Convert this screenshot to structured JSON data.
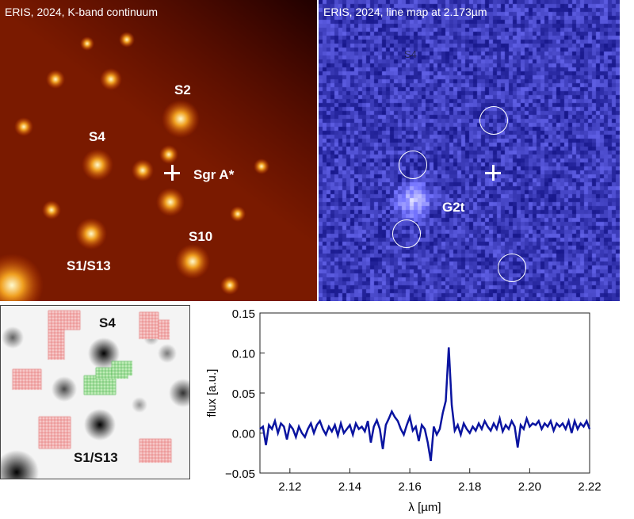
{
  "panel_continuum": {
    "title": "ERIS, 2024, K-band continuum",
    "labels": {
      "s2": "S2",
      "s4": "S4",
      "sgra": "Sgr A*",
      "s10": "S10",
      "s1s13": "S1/S13"
    },
    "colormap": "#7a1500"
  },
  "panel_linemap": {
    "title": "ERIS, 2024, line map at 2.173µm",
    "labels": {
      "s4": "S4",
      "g2t": "G2t"
    },
    "colormap": "#1c1ca8"
  },
  "panel_mask": {
    "labels": {
      "s4": "S4",
      "s1s13": "S1/S13"
    },
    "mask_colors": {
      "background": "#e05050",
      "source": "#40c040"
    }
  },
  "chart_data": {
    "type": "line",
    "xlabel": "λ [µm]",
    "ylabel": "flux [a.u.]",
    "xlim": [
      2.11,
      2.22
    ],
    "ylim": [
      -0.05,
      0.15
    ],
    "xticks": [
      "2.12",
      "2.14",
      "2.16",
      "2.18",
      "2.20",
      "2.22"
    ],
    "yticks": [
      "0.15",
      "0.10",
      "0.05",
      "0.00",
      "−0.05"
    ],
    "grid": false,
    "line_color": "#0a14a0",
    "x": [
      2.11,
      2.111,
      2.112,
      2.113,
      2.114,
      2.115,
      2.116,
      2.117,
      2.118,
      2.119,
      2.12,
      2.121,
      2.122,
      2.123,
      2.124,
      2.125,
      2.126,
      2.127,
      2.128,
      2.129,
      2.13,
      2.131,
      2.132,
      2.133,
      2.134,
      2.135,
      2.136,
      2.137,
      2.138,
      2.139,
      2.14,
      2.141,
      2.142,
      2.143,
      2.144,
      2.145,
      2.146,
      2.147,
      2.148,
      2.149,
      2.15,
      2.151,
      2.152,
      2.153,
      2.154,
      2.155,
      2.156,
      2.157,
      2.158,
      2.159,
      2.16,
      2.161,
      2.162,
      2.163,
      2.164,
      2.165,
      2.166,
      2.167,
      2.168,
      2.169,
      2.17,
      2.171,
      2.172,
      2.173,
      2.174,
      2.175,
      2.176,
      2.177,
      2.178,
      2.179,
      2.18,
      2.181,
      2.182,
      2.183,
      2.184,
      2.185,
      2.186,
      2.187,
      2.188,
      2.189,
      2.19,
      2.191,
      2.192,
      2.193,
      2.194,
      2.195,
      2.196,
      2.197,
      2.198,
      2.199,
      2.2,
      2.201,
      2.202,
      2.203,
      2.204,
      2.205,
      2.206,
      2.207,
      2.208,
      2.209,
      2.21,
      2.211,
      2.212,
      2.213,
      2.214,
      2.215,
      2.216,
      2.217,
      2.218,
      2.219,
      2.22
    ],
    "y": [
      0.005,
      0.008,
      -0.015,
      0.01,
      0.005,
      0.015,
      0.0,
      0.012,
      0.008,
      -0.008,
      0.01,
      0.005,
      -0.005,
      0.008,
      0.0,
      -0.005,
      0.005,
      0.012,
      0.0,
      0.01,
      0.015,
      0.005,
      -0.002,
      0.008,
      0.002,
      0.01,
      -0.003,
      0.012,
      0.0,
      0.005,
      0.01,
      -0.002,
      0.012,
      0.005,
      0.008,
      0.002,
      0.015,
      -0.012,
      0.008,
      0.016,
      0.005,
      -0.02,
      0.01,
      0.018,
      0.027,
      0.02,
      0.015,
      0.005,
      -0.002,
      0.01,
      0.02,
      0.003,
      0.008,
      -0.01,
      0.01,
      0.005,
      -0.012,
      -0.035,
      0.008,
      -0.002,
      0.005,
      0.025,
      0.04,
      0.107,
      0.035,
      0.003,
      0.01,
      -0.002,
      0.012,
      0.005,
      0.0,
      0.008,
      0.003,
      0.012,
      0.005,
      0.015,
      0.008,
      0.003,
      0.012,
      0.005,
      0.018,
      0.002,
      0.01,
      0.005,
      0.015,
      0.008,
      -0.018,
      0.01,
      0.005,
      0.018,
      0.008,
      0.012,
      0.01,
      0.015,
      0.005,
      0.012,
      0.008,
      0.015,
      0.003,
      0.012,
      0.008,
      0.012,
      0.005,
      0.015,
      0.0,
      0.015,
      0.005,
      0.012,
      0.008,
      0.015,
      0.005
    ]
  }
}
